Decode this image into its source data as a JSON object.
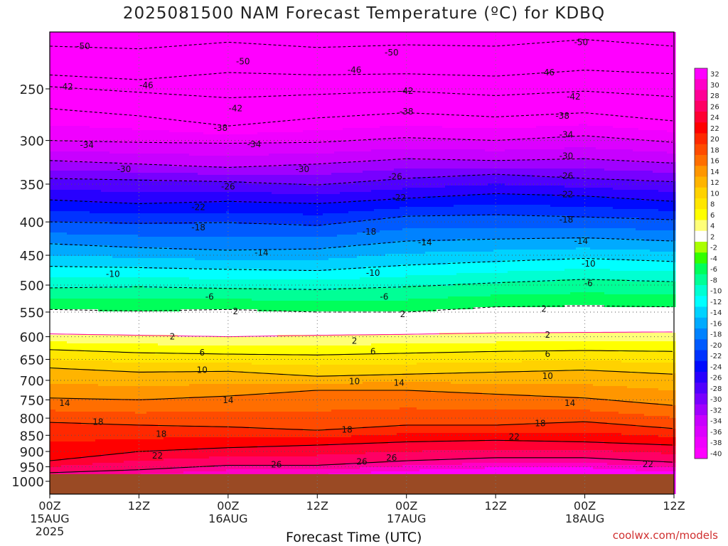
{
  "title": "2025081500 NAM Forecast Temperature (ºC) for KDBQ",
  "credit": "coolwx.com/models",
  "chart_data": {
    "type": "heatmap",
    "title": "2025081500 NAM Forecast Temperature (ºC) for KDBQ",
    "xlabel": "Forecast Time (UTC)",
    "ylabel": "",
    "x_range_hours": [
      0,
      84
    ],
    "y_range_hpa": [
      200,
      1000
    ],
    "y_ticks": [
      250,
      300,
      350,
      400,
      450,
      500,
      550,
      600,
      650,
      700,
      750,
      800,
      850,
      900,
      950,
      1000
    ],
    "x_ticks": [
      {
        "hour": 0,
        "label": "00Z",
        "date": "15AUG",
        "year": "2025"
      },
      {
        "hour": 12,
        "label": "12Z",
        "date": "",
        "year": ""
      },
      {
        "hour": 24,
        "label": "00Z",
        "date": "16AUG",
        "year": ""
      },
      {
        "hour": 36,
        "label": "12Z",
        "date": "",
        "year": ""
      },
      {
        "hour": 48,
        "label": "00Z",
        "date": "17AUG",
        "year": ""
      },
      {
        "hour": 60,
        "label": "12Z",
        "date": "",
        "year": ""
      },
      {
        "hour": 72,
        "label": "00Z",
        "date": "18AUG",
        "year": ""
      },
      {
        "hour": 84,
        "label": "12Z",
        "date": "",
        "year": ""
      }
    ],
    "surface_pressure_hpa": 975,
    "ground_color": "#9a4a24",
    "isotherm_profile": {
      "hours": [
        0,
        12,
        24,
        36,
        48,
        60,
        72,
        84
      ],
      "levels": [
        {
          "t": -50,
          "p": [
            215,
            217,
            212,
            216,
            214,
            215,
            210,
            215
          ]
        },
        {
          "t": -46,
          "p": [
            238,
            242,
            236,
            238,
            237,
            239,
            234,
            237
          ]
        },
        {
          "t": -42,
          "p": [
            248,
            253,
            258,
            255,
            252,
            256,
            252,
            257
          ]
        },
        {
          "t": -38,
          "p": [
            268,
            275,
            285,
            277,
            272,
            276,
            272,
            280
          ]
        },
        {
          "t": -34,
          "p": [
            300,
            302,
            303,
            302,
            297,
            300,
            295,
            302
          ]
        },
        {
          "t": -30,
          "p": [
            322,
            326,
            330,
            326,
            320,
            322,
            320,
            325
          ]
        },
        {
          "t": -26,
          "p": [
            343,
            345,
            347,
            351,
            343,
            338,
            343,
            347
          ]
        },
        {
          "t": -22,
          "p": [
            370,
            375,
            372,
            375,
            368,
            362,
            365,
            372
          ]
        },
        {
          "t": -18,
          "p": [
            400,
            402,
            401,
            405,
            392,
            390,
            393,
            397
          ]
        },
        {
          "t": -14,
          "p": [
            432,
            438,
            442,
            440,
            428,
            425,
            423,
            428
          ]
        },
        {
          "t": -10,
          "p": [
            468,
            470,
            473,
            475,
            466,
            460,
            455,
            460
          ]
        },
        {
          "t": -6,
          "p": [
            505,
            503,
            506,
            508,
            503,
            496,
            490,
            494
          ]
        },
        {
          "t": -2,
          "p": [
            545,
            548,
            545,
            550,
            550,
            540,
            538,
            540
          ]
        },
        {
          "t": 2,
          "p": [
            594,
            597,
            600,
            597,
            595,
            592,
            591,
            590
          ]
        },
        {
          "t": 6,
          "p": [
            628,
            635,
            638,
            640,
            636,
            632,
            630,
            632
          ]
        },
        {
          "t": 10,
          "p": [
            670,
            680,
            678,
            690,
            685,
            680,
            675,
            685
          ]
        },
        {
          "t": 14,
          "p": [
            745,
            750,
            740,
            725,
            725,
            735,
            745,
            765
          ]
        },
        {
          "t": 18,
          "p": [
            812,
            820,
            825,
            835,
            820,
            820,
            810,
            830
          ]
        },
        {
          "t": 22,
          "p": [
            930,
            900,
            888,
            880,
            870,
            865,
            870,
            880
          ]
        },
        {
          "t": 26,
          "p": [
            970,
            960,
            945,
            945,
            930,
            920,
            920,
            935
          ]
        }
      ]
    },
    "contour_labels": [
      {
        "t": -50,
        "h": 4.5,
        "p": 215
      },
      {
        "t": -50,
        "h": 26,
        "p": 227
      },
      {
        "t": -50,
        "h": 46,
        "p": 220
      },
      {
        "t": -50,
        "h": 71.5,
        "p": 212
      },
      {
        "t": -46,
        "h": 13,
        "p": 247
      },
      {
        "t": -46,
        "h": 41,
        "p": 234
      },
      {
        "t": -46,
        "h": 67,
        "p": 236
      },
      {
        "t": -42,
        "h": 2.2,
        "p": 248
      },
      {
        "t": -42,
        "h": 25,
        "p": 268
      },
      {
        "t": -42,
        "h": 48,
        "p": 252
      },
      {
        "t": -42,
        "h": 70.5,
        "p": 257
      },
      {
        "t": -38,
        "h": 23,
        "p": 287
      },
      {
        "t": -38,
        "h": 48,
        "p": 271
      },
      {
        "t": -38,
        "h": 69,
        "p": 275
      },
      {
        "t": -34,
        "h": 5,
        "p": 305
      },
      {
        "t": -34,
        "h": 27.5,
        "p": 304
      },
      {
        "t": -34,
        "h": 69.5,
        "p": 294
      },
      {
        "t": -30,
        "h": 10,
        "p": 332
      },
      {
        "t": -30,
        "h": 34,
        "p": 332
      },
      {
        "t": -30,
        "h": 69.5,
        "p": 317
      },
      {
        "t": -26,
        "h": 24,
        "p": 353
      },
      {
        "t": -26,
        "h": 46.5,
        "p": 341
      },
      {
        "t": -26,
        "h": 69.5,
        "p": 340
      },
      {
        "t": -22,
        "h": 20,
        "p": 380
      },
      {
        "t": -22,
        "h": 47,
        "p": 367
      },
      {
        "t": -22,
        "h": 69.5,
        "p": 363
      },
      {
        "t": -18,
        "h": 20,
        "p": 408
      },
      {
        "t": -18,
        "h": 43,
        "p": 414
      },
      {
        "t": -18,
        "h": 69.5,
        "p": 397
      },
      {
        "t": -14,
        "h": 28.5,
        "p": 446
      },
      {
        "t": -14,
        "h": 50.5,
        "p": 430
      },
      {
        "t": -14,
        "h": 71.5,
        "p": 428
      },
      {
        "t": -10,
        "h": 8.5,
        "p": 481
      },
      {
        "t": -10,
        "h": 43.5,
        "p": 479
      },
      {
        "t": -10,
        "h": 72.5,
        "p": 464
      },
      {
        "t": -6,
        "h": 21.5,
        "p": 521
      },
      {
        "t": -6,
        "h": 45,
        "p": 521
      },
      {
        "t": -6,
        "h": 72.5,
        "p": 497
      },
      {
        "t": 2,
        "h": 25,
        "p": 549
      },
      {
        "t": 2,
        "h": 47.5,
        "p": 554
      },
      {
        "t": 2,
        "h": 66.5,
        "p": 544
      },
      {
        "t": 2,
        "h": 16.5,
        "p": 600
      },
      {
        "t": 2,
        "h": 41,
        "p": 609
      },
      {
        "t": 2,
        "h": 67,
        "p": 596
      },
      {
        "t": 6,
        "h": 20.5,
        "p": 635
      },
      {
        "t": 6,
        "h": 43.5,
        "p": 632
      },
      {
        "t": 6,
        "h": 67,
        "p": 638
      },
      {
        "t": 10,
        "h": 20.5,
        "p": 675
      },
      {
        "t": 10,
        "h": 41,
        "p": 703
      },
      {
        "t": 10,
        "h": 67,
        "p": 690
      },
      {
        "t": 14,
        "h": 2,
        "p": 759
      },
      {
        "t": 14,
        "h": 24,
        "p": 751
      },
      {
        "t": 14,
        "h": 47,
        "p": 706
      },
      {
        "t": 14,
        "h": 70,
        "p": 759
      },
      {
        "t": 18,
        "h": 6.5,
        "p": 811
      },
      {
        "t": 18,
        "h": 15,
        "p": 846
      },
      {
        "t": 18,
        "h": 40,
        "p": 834
      },
      {
        "t": 18,
        "h": 66,
        "p": 815
      },
      {
        "t": 22,
        "h": 14.5,
        "p": 914
      },
      {
        "t": 22,
        "h": 62.5,
        "p": 855
      },
      {
        "t": 22,
        "h": 80.5,
        "p": 941
      },
      {
        "t": 26,
        "h": 30.5,
        "p": 943
      },
      {
        "t": 26,
        "h": 42,
        "p": 933
      },
      {
        "t": 26,
        "h": 46,
        "p": 921
      }
    ],
    "colorbar": [
      {
        "label": "32",
        "color": "#ff00ff"
      },
      {
        "label": "30",
        "color": "#ff00c8"
      },
      {
        "label": "28",
        "color": "#ff0096"
      },
      {
        "label": "26",
        "color": "#ff0064"
      },
      {
        "label": "24",
        "color": "#ff0032"
      },
      {
        "label": "22",
        "color": "#ff0000"
      },
      {
        "label": "20",
        "color": "#ff2800"
      },
      {
        "label": "18",
        "color": "#ff4b00"
      },
      {
        "label": "16",
        "color": "#ff6e00"
      },
      {
        "label": "14",
        "color": "#ff9600"
      },
      {
        "label": "12",
        "color": "#ffb400"
      },
      {
        "label": "10",
        "color": "#ffd200"
      },
      {
        "label": "8",
        "color": "#ffe600"
      },
      {
        "label": "6",
        "color": "#ffff00"
      },
      {
        "label": "4",
        "color": "#ffff78"
      },
      {
        "label": "2",
        "color": "#ffffff"
      },
      {
        "label": "-2",
        "color": "#aaff00"
      },
      {
        "label": "-4",
        "color": "#32ff00"
      },
      {
        "label": "-6",
        "color": "#00ff5a"
      },
      {
        "label": "-8",
        "color": "#00ff96"
      },
      {
        "label": "-10",
        "color": "#00ffd2"
      },
      {
        "label": "-12",
        "color": "#00ffff"
      },
      {
        "label": "-14",
        "color": "#00d2ff"
      },
      {
        "label": "-16",
        "color": "#00aaff"
      },
      {
        "label": "-18",
        "color": "#0082ff"
      },
      {
        "label": "-20",
        "color": "#005aff"
      },
      {
        "label": "-22",
        "color": "#0032ff"
      },
      {
        "label": "-24",
        "color": "#000aff"
      },
      {
        "label": "-26",
        "color": "#2800ff"
      },
      {
        "label": "-28",
        "color": "#5000ff"
      },
      {
        "label": "-30",
        "color": "#7800ff"
      },
      {
        "label": "-32",
        "color": "#a000ff"
      },
      {
        "label": "-34",
        "color": "#c800ff"
      },
      {
        "label": "-36",
        "color": "#dc00ff"
      },
      {
        "label": "-38",
        "color": "#f000ff"
      },
      {
        "label": "-40",
        "color": "#ff00ff"
      }
    ]
  }
}
